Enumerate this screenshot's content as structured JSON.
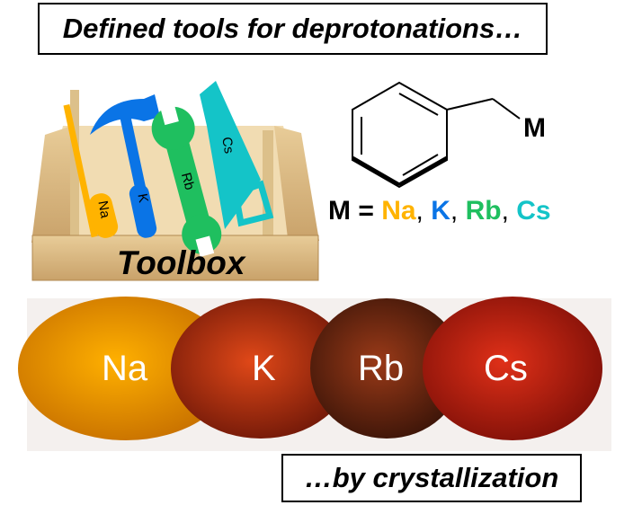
{
  "title": "Defined tools for deprotonations…",
  "footer": "…by crystallization",
  "toolbox": {
    "label": "Toolbox",
    "tools": [
      {
        "name": "screwdriver",
        "label": "Na"
      },
      {
        "name": "hammer",
        "label": "K"
      },
      {
        "name": "wrench",
        "label": "Rb"
      },
      {
        "name": "saw",
        "label": "Cs"
      }
    ]
  },
  "structure": {
    "metal_label": "M",
    "equation_prefix": "M = ",
    "metals": [
      {
        "label": "Na",
        "color": "#ffb300"
      },
      {
        "label": "K",
        "color": "#0a74e6"
      },
      {
        "label": "Rb",
        "color": "#1fbf5f"
      },
      {
        "label": "Cs",
        "color": "#14c4c8"
      }
    ],
    "separator": ", "
  },
  "tubes": [
    {
      "label": "Na",
      "color": "#f0a000"
    },
    {
      "label": "K",
      "color": "#c03010"
    },
    {
      "label": "Rb",
      "color": "#8a2a10"
    },
    {
      "label": "Cs",
      "color": "#c02010"
    }
  ]
}
